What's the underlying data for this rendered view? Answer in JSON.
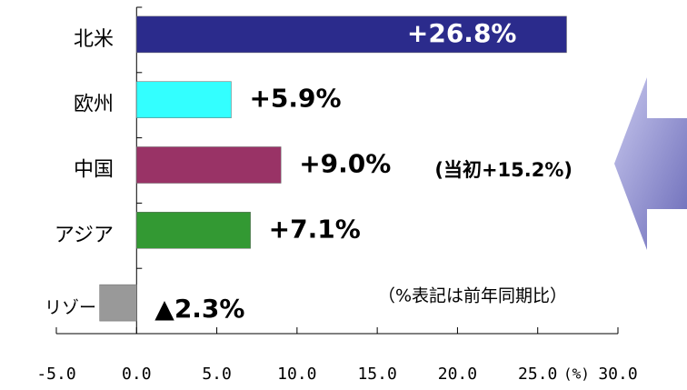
{
  "chart_data": {
    "type": "bar",
    "orientation": "horizontal",
    "categories": [
      "北米",
      "欧州",
      "中国",
      "アジア",
      "リゾート"
    ],
    "values": [
      26.8,
      5.9,
      9.0,
      7.1,
      -2.3
    ],
    "value_labels": [
      "+26.8%",
      "+5.9%",
      "+9.0%",
      "+7.1%",
      "▲2.3%"
    ],
    "colors": [
      "#2b2b8c",
      "#33ffff",
      "#993366",
      "#339933",
      "#999999"
    ],
    "xlim": [
      -5,
      30
    ],
    "xticks": [
      {
        "value": -5,
        "label": "-5.0"
      },
      {
        "value": 0,
        "label": "0.0"
      },
      {
        "value": 5,
        "label": "5.0"
      },
      {
        "value": 10,
        "label": "10.0"
      },
      {
        "value": 15,
        "label": "15.0"
      },
      {
        "value": 20,
        "label": "20.0"
      },
      {
        "value": 25,
        "label": "25.0"
      },
      {
        "value": 30,
        "label": "30.0"
      }
    ],
    "xlabel": "(%)",
    "annotations": [
      "(当初+15.2%)",
      "（%表記は前年同期比）"
    ]
  }
}
